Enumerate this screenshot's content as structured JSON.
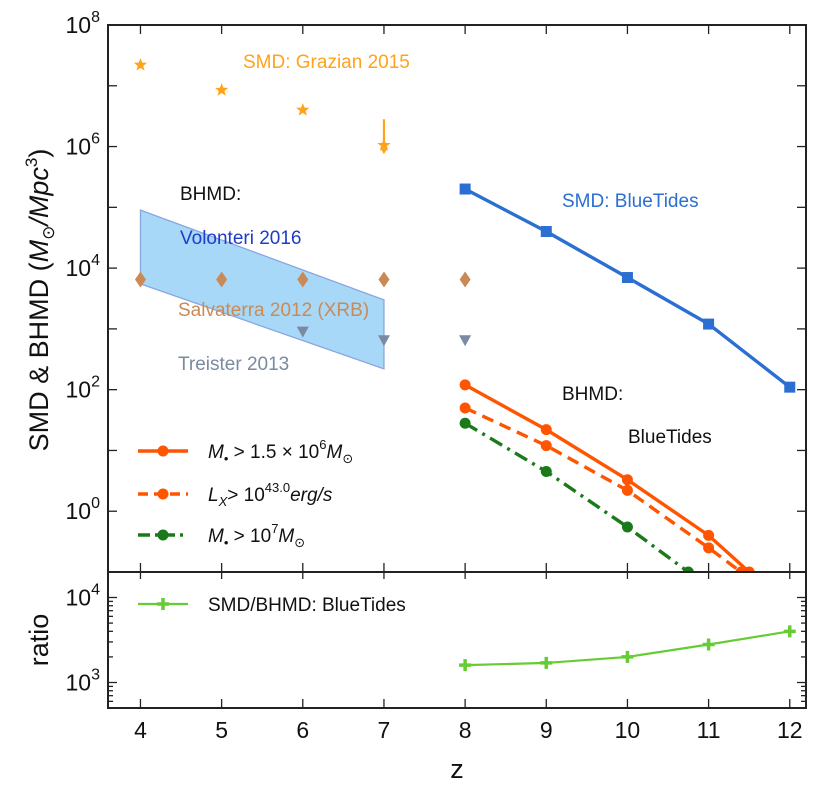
{
  "chart_data": [
    {
      "type": "line",
      "panel": "main",
      "xlabel": "z",
      "ylabel": "SMD & BHMD (M_⊙/Mpc^3)",
      "xlim": [
        3.6,
        12.2
      ],
      "ylim_log10": [
        -1,
        8
      ],
      "scale": "log",
      "x_ticks": [
        4,
        5,
        6,
        7,
        8,
        9,
        10,
        11,
        12
      ],
      "y_ticks": [
        {
          "exp": 0,
          "base": "10",
          "sup": "0"
        },
        {
          "exp": 2,
          "base": "10",
          "sup": "2"
        },
        {
          "exp": 4,
          "base": "10",
          "sup": "4"
        },
        {
          "exp": 6,
          "base": "10",
          "sup": "6"
        },
        {
          "exp": 8,
          "base": "10",
          "sup": "8"
        }
      ],
      "series": [
        {
          "name": "SMD: BlueTides",
          "color": "#2a6fd1",
          "marker": "square",
          "style": "solid",
          "x": [
            8,
            9,
            10,
            11,
            12
          ],
          "y": [
            200000,
            40000,
            7000,
            1200,
            110
          ]
        },
        {
          "name": "M• > 1.5 × 10^6 M⊙",
          "color": "#ff5500",
          "marker": "circle",
          "style": "solid",
          "x": [
            8,
            9,
            10,
            11,
            11.5
          ],
          "y": [
            120,
            22,
            3.3,
            0.4,
            0.1
          ]
        },
        {
          "name": "L_X > 10^43.0 erg/s",
          "color": "#ff5500",
          "marker": "circle",
          "style": "dashed",
          "x": [
            8,
            9,
            10,
            11,
            11.4
          ],
          "y": [
            50,
            12,
            2.2,
            0.25,
            0.1
          ]
        },
        {
          "name": "M• > 10^7 M⊙",
          "color": "#1a7a1a",
          "marker": "circle",
          "style": "dashdot",
          "x": [
            8,
            9,
            10,
            10.75
          ],
          "y": [
            28,
            4.5,
            0.55,
            0.1
          ]
        },
        {
          "name": "SMD: Grazian 2015",
          "color": "#ffa31a",
          "marker": "star",
          "style": "none",
          "x": [
            4,
            5,
            6,
            7
          ],
          "y": [
            22000000,
            8500000,
            4000000,
            1050000
          ],
          "upper_limit_x": 7
        },
        {
          "name": "Salvaterra 2012 (XRB)",
          "color": "#c98a55",
          "marker": "diamond",
          "style": "none",
          "x": [
            4,
            5,
            6,
            7,
            8
          ],
          "y": [
            6500,
            6500,
            6500,
            6500,
            6500
          ]
        },
        {
          "name": "Treister 2013",
          "color": "#7a8aa0",
          "marker": "triangle-down",
          "style": "none",
          "x": [
            6,
            7,
            8
          ],
          "y": [
            900,
            650,
            650
          ]
        }
      ],
      "band": {
        "name": "Volonteri 2016",
        "color": "#a8d8f8",
        "edge": "#8aa6e0",
        "x": [
          4,
          7
        ],
        "upper": [
          90000,
          3000
        ],
        "lower": [
          5500,
          220
        ]
      },
      "annotations": [
        {
          "text": "SMD: Grazian 2015",
          "color": "#ffa31a"
        },
        {
          "text": "BHMD:",
          "color": "#111111"
        },
        {
          "text": "Volonteri 2016",
          "color": "#1e3cc8"
        },
        {
          "text": "Salvaterra 2012 (XRB)",
          "color": "#c98a55"
        },
        {
          "text": "Treister 2013",
          "color": "#7a8aa0"
        },
        {
          "text": "SMD: BlueTides",
          "color": "#2a6fd1"
        },
        {
          "text": "BHMD:",
          "color": "#111111"
        },
        {
          "text": "BlueTides",
          "color": "#111111"
        }
      ],
      "legend": [
        {
          "base": "M",
          "sub": "•",
          "mid": " > 1.5 × 10",
          "sup": "6",
          "tail": "M",
          "tail_sub": "⊙",
          "color": "#ff5500",
          "style": "solid"
        },
        {
          "base": "L",
          "sub": "X",
          "mid": "> 10",
          "sup": "43.0",
          "tail": "erg/s",
          "tail_sub": "",
          "color": "#ff5500",
          "style": "dashed"
        },
        {
          "base": "M",
          "sub": "•",
          "mid": " > 10",
          "sup": "7",
          "tail": "M",
          "tail_sub": "⊙",
          "color": "#1a7a1a",
          "style": "dashdot"
        }
      ]
    },
    {
      "type": "line",
      "panel": "ratio",
      "xlabel": "z",
      "ylabel": "ratio",
      "ylim_log10": [
        2.7,
        4.3
      ],
      "y_ticks": [
        {
          "exp": 3,
          "base": "10",
          "sup": "3"
        },
        {
          "exp": 4,
          "base": "10",
          "sup": "4"
        }
      ],
      "series": [
        {
          "name": "SMD/BHMD: BlueTides",
          "color": "#66cc33",
          "marker": "plus",
          "style": "solid",
          "x": [
            8,
            9,
            10,
            11,
            12
          ],
          "y": [
            1600,
            1700,
            2000,
            2800,
            4000
          ]
        }
      ],
      "legend_label": "SMD/BHMD: BlueTides"
    }
  ]
}
